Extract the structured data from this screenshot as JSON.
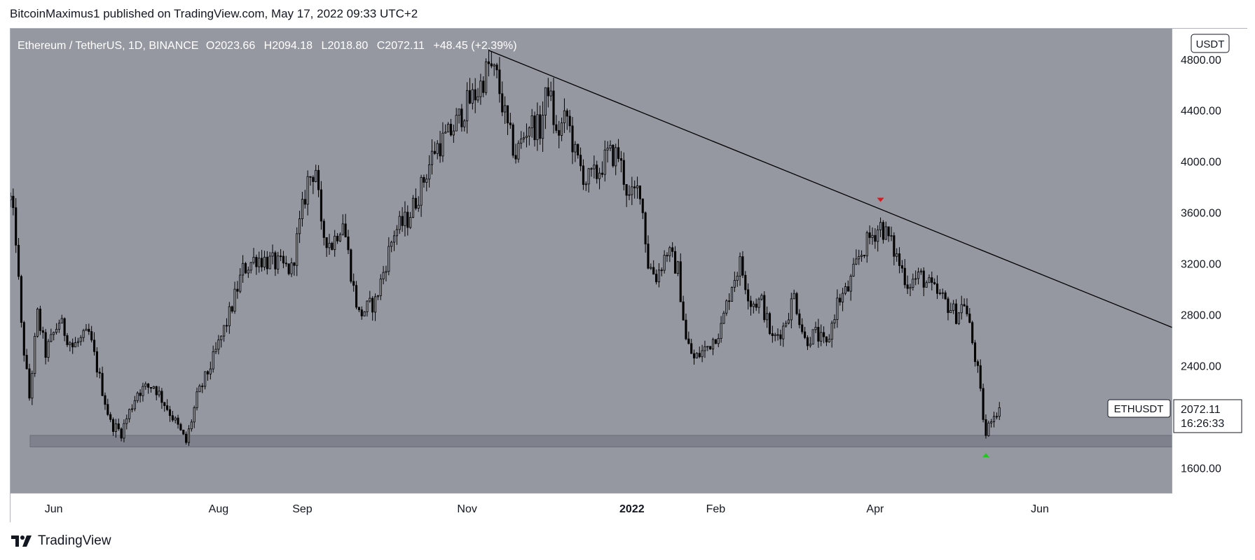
{
  "header": {
    "text": "BitcoinMaximus1 published on TradingView.com, May 17, 2022 09:33 UTC+2"
  },
  "footer": {
    "brand": "TradingView",
    "logo_icon": "tradingview-logo-icon"
  },
  "colors": {
    "plot_bg": "#9598a1",
    "axis_bg": "#ffffff",
    "candle": "#000000",
    "trendline": "#000000",
    "support_zone": "#787b86",
    "marker_down": "#e0161b",
    "marker_up": "#22c71f"
  },
  "legend": {
    "symbol": "Ethereum / TetherUS, 1D, BINANCE",
    "o_label": "O",
    "o_value": "2023.66",
    "h_label": "H",
    "h_value": "2094.18",
    "l_label": "L",
    "l_value": "2018.80",
    "c_label": "C",
    "c_value": "2072.11",
    "change": "+48.45 (+2.39%)"
  },
  "currency_badge": "USDT",
  "price_tag": {
    "symbol": "ETHUSDT",
    "price": "2072.11",
    "countdown": "16:26:33"
  },
  "chart_data": {
    "type": "candlestick",
    "symbol": "ETHUSDT",
    "interval": "1D",
    "exchange": "BINANCE",
    "ylim": [
      1400,
      5040
    ],
    "xlim": [
      "2021-05-16",
      "2022-07-20"
    ],
    "y_ticks": [
      "4800.00",
      "4400.00",
      "4000.00",
      "3600.00",
      "3200.00",
      "2800.00",
      "2400.00",
      "1600.00"
    ],
    "y_tick_values": [
      4800,
      4400,
      4000,
      3600,
      3200,
      2800,
      2400,
      1600
    ],
    "x_ticks": [
      {
        "label": "Jun",
        "date": "2021-06-01"
      },
      {
        "label": "Aug",
        "date": "2021-08-01"
      },
      {
        "label": "Sep",
        "date": "2021-09-01"
      },
      {
        "label": "Nov",
        "date": "2021-11-01"
      },
      {
        "label": "2022",
        "date": "2022-01-01"
      },
      {
        "label": "Feb",
        "date": "2022-02-01"
      },
      {
        "label": "Apr",
        "date": "2022-04-01"
      },
      {
        "label": "Jun",
        "date": "2022-06-01"
      }
    ],
    "price_path": [
      [
        "2021-05-16",
        3700
      ],
      [
        "2021-05-18",
        3400
      ],
      [
        "2021-05-20",
        2700
      ],
      [
        "2021-05-23",
        2150
      ],
      [
        "2021-05-26",
        2800
      ],
      [
        "2021-05-29",
        2500
      ],
      [
        "2021-06-03",
        2750
      ],
      [
        "2021-06-08",
        2550
      ],
      [
        "2021-06-14",
        2650
      ],
      [
        "2021-06-18",
        2300
      ],
      [
        "2021-06-22",
        1950
      ],
      [
        "2021-06-26",
        1880
      ],
      [
        "2021-07-02",
        2200
      ],
      [
        "2021-07-08",
        2250
      ],
      [
        "2021-07-15",
        2000
      ],
      [
        "2021-07-20",
        1800
      ],
      [
        "2021-07-24",
        2150
      ],
      [
        "2021-07-30",
        2450
      ],
      [
        "2021-08-05",
        2800
      ],
      [
        "2021-08-10",
        3150
      ],
      [
        "2021-08-15",
        3250
      ],
      [
        "2021-08-22",
        3200
      ],
      [
        "2021-08-28",
        3150
      ],
      [
        "2021-09-03",
        3850
      ],
      [
        "2021-09-06",
        3950
      ],
      [
        "2021-09-08",
        3450
      ],
      [
        "2021-09-12",
        3350
      ],
      [
        "2021-09-16",
        3550
      ],
      [
        "2021-09-20",
        3000
      ],
      [
        "2021-09-22",
        2800
      ],
      [
        "2021-09-28",
        2900
      ],
      [
        "2021-10-05",
        3450
      ],
      [
        "2021-10-10",
        3550
      ],
      [
        "2021-10-15",
        3800
      ],
      [
        "2021-10-20",
        4100
      ],
      [
        "2021-10-25",
        4200
      ],
      [
        "2021-10-28",
        4300
      ],
      [
        "2021-11-01",
        4450
      ],
      [
        "2021-11-05",
        4550
      ],
      [
        "2021-11-09",
        4750
      ],
      [
        "2021-11-12",
        4650
      ],
      [
        "2021-11-16",
        4250
      ],
      [
        "2021-11-19",
        4050
      ],
      [
        "2021-11-24",
        4300
      ],
      [
        "2021-11-28",
        4250
      ],
      [
        "2021-12-01",
        4600
      ],
      [
        "2021-12-04",
        4200
      ],
      [
        "2021-12-08",
        4350
      ],
      [
        "2021-12-11",
        4050
      ],
      [
        "2021-12-15",
        3850
      ],
      [
        "2021-12-19",
        3900
      ],
      [
        "2021-12-23",
        4050
      ],
      [
        "2021-12-27",
        4050
      ],
      [
        "2021-12-31",
        3700
      ],
      [
        "2022-01-04",
        3800
      ],
      [
        "2022-01-07",
        3200
      ],
      [
        "2022-01-10",
        3100
      ],
      [
        "2022-01-14",
        3300
      ],
      [
        "2022-01-18",
        3150
      ],
      [
        "2022-01-21",
        2600
      ],
      [
        "2022-01-24",
        2450
      ],
      [
        "2022-01-29",
        2550
      ],
      [
        "2022-02-03",
        2700
      ],
      [
        "2022-02-07",
        3050
      ],
      [
        "2022-02-10",
        3200
      ],
      [
        "2022-02-14",
        2900
      ],
      [
        "2022-02-18",
        2900
      ],
      [
        "2022-02-22",
        2600
      ],
      [
        "2022-02-26",
        2700
      ],
      [
        "2022-03-02",
        2950
      ],
      [
        "2022-03-06",
        2600
      ],
      [
        "2022-03-10",
        2650
      ],
      [
        "2022-03-14",
        2550
      ],
      [
        "2022-03-18",
        2900
      ],
      [
        "2022-03-22",
        3000
      ],
      [
        "2022-03-26",
        3250
      ],
      [
        "2022-03-30",
        3400
      ],
      [
        "2022-04-03",
        3500
      ],
      [
        "2022-04-06",
        3400
      ],
      [
        "2022-04-09",
        3250
      ],
      [
        "2022-04-13",
        3050
      ],
      [
        "2022-04-18",
        3100
      ],
      [
        "2022-04-22",
        3000
      ],
      [
        "2022-04-27",
        2900
      ],
      [
        "2022-05-01",
        2800
      ],
      [
        "2022-05-04",
        2900
      ],
      [
        "2022-05-06",
        2700
      ],
      [
        "2022-05-09",
        2350
      ],
      [
        "2022-05-11",
        2000
      ],
      [
        "2022-05-12",
        1850
      ],
      [
        "2022-05-14",
        2000
      ],
      [
        "2022-05-16",
        2050
      ],
      [
        "2022-05-17",
        2072
      ]
    ],
    "trendline": {
      "from": [
        "2021-11-09",
        4870
      ],
      "to": [
        "2022-07-20",
        2700
      ]
    },
    "support_zone": {
      "from": 1765,
      "to": 1855
    },
    "markers": [
      {
        "date": "2022-04-03",
        "price": 3700,
        "type": "down-arrow"
      },
      {
        "date": "2022-05-12",
        "price": 1700,
        "type": "up-arrow"
      }
    ],
    "last_price": 2072.11
  }
}
